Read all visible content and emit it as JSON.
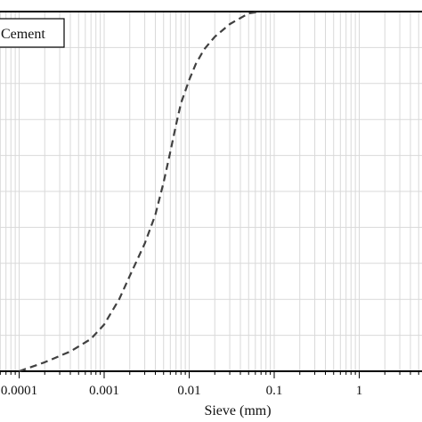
{
  "chart_data": {
    "type": "line",
    "title": "",
    "xlabel": "Sieve (mm)",
    "ylabel": "",
    "x_scale": "log",
    "xlim": [
      3e-05,
      5
    ],
    "ylim": [
      0,
      100
    ],
    "x_ticks": [
      {
        "value": 0.0001,
        "label": "0.0001"
      },
      {
        "value": 0.001,
        "label": "0.001"
      },
      {
        "value": 0.01,
        "label": "0.01"
      },
      {
        "value": 0.1,
        "label": "0.1"
      },
      {
        "value": 1,
        "label": "1"
      }
    ],
    "grid": true,
    "legend": {
      "position": "top-left",
      "entries": [
        "Cement"
      ]
    },
    "series": [
      {
        "name": "Cement",
        "line_style": "dashed",
        "color": "#404040",
        "x": [
          0.0001,
          0.0002,
          0.0004,
          0.0007,
          0.001,
          0.0015,
          0.002,
          0.003,
          0.004,
          0.005,
          0.006,
          0.007,
          0.008,
          0.01,
          0.012,
          0.015,
          0.02,
          0.03,
          0.04,
          0.05,
          0.07
        ],
        "y": [
          0.0,
          2.5,
          5.5,
          9.0,
          13.0,
          20.0,
          26.5,
          35.5,
          43.5,
          52.5,
          61.0,
          68.5,
          74.5,
          81.0,
          85.5,
          89.5,
          93.0,
          96.5,
          98.2,
          99.5,
          100.0
        ]
      }
    ]
  }
}
